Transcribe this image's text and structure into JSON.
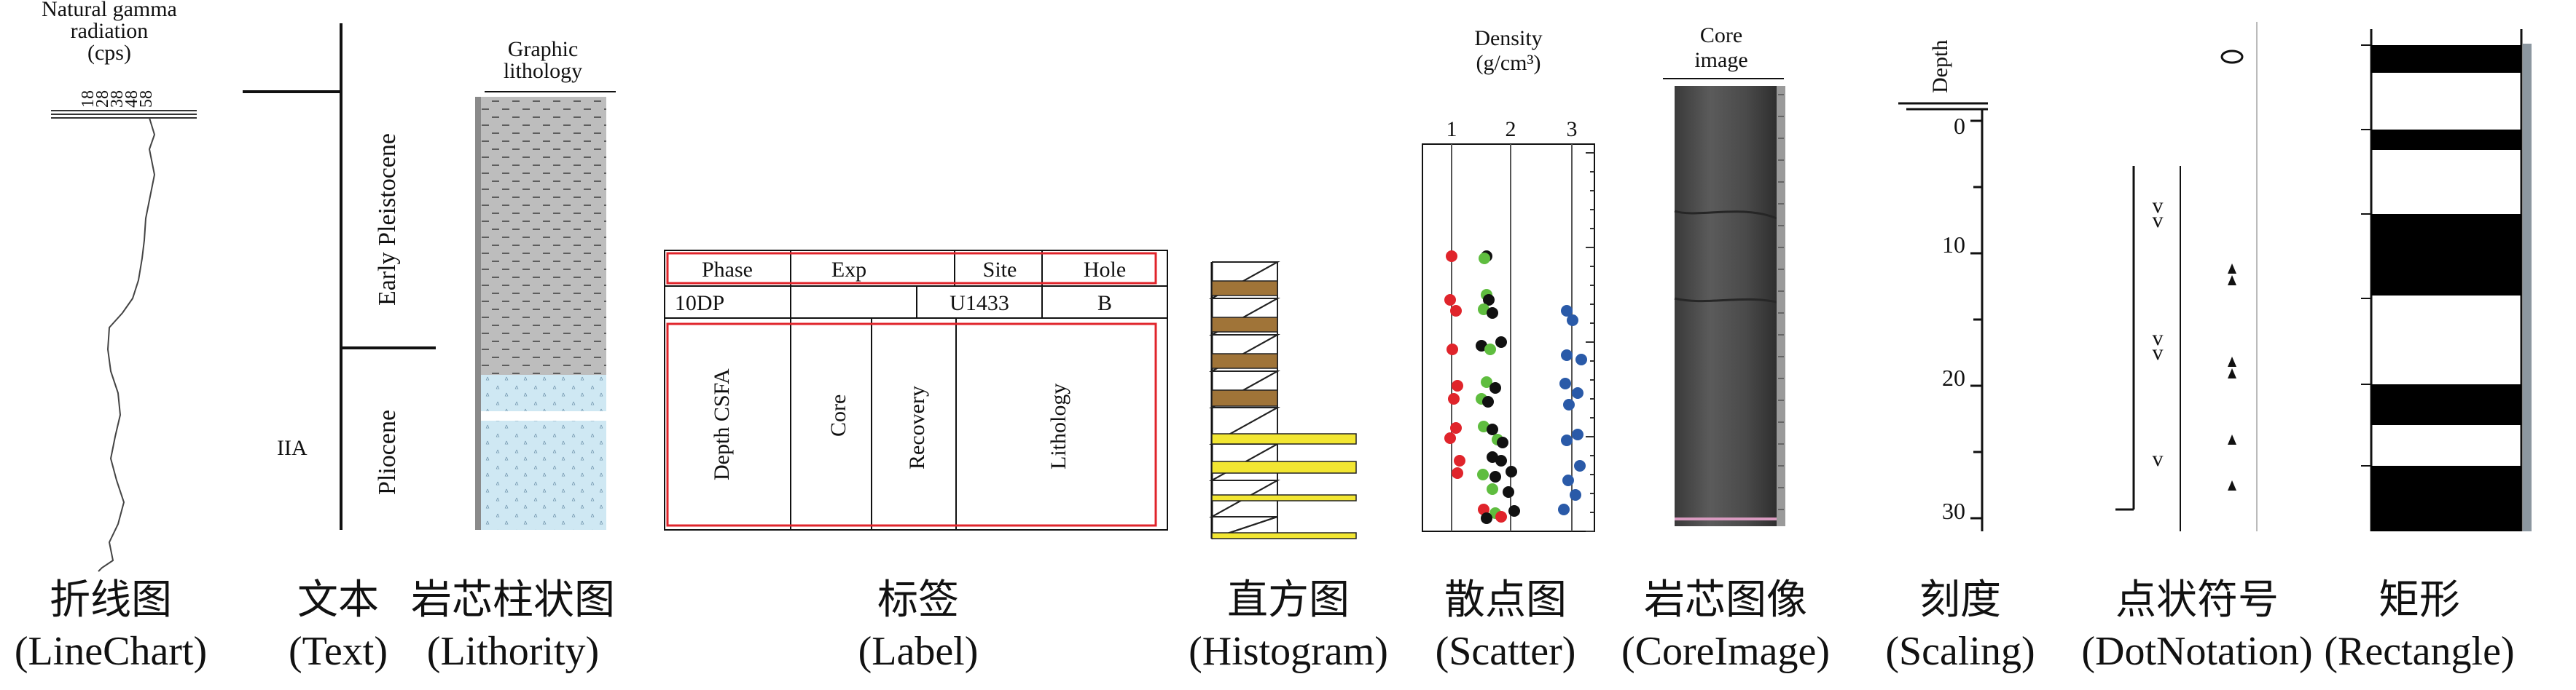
{
  "linechart": {
    "title": [
      "Natural gamma",
      "radiation",
      "(cps)"
    ],
    "ticks": [
      "18",
      "28",
      "38",
      "48",
      "58"
    ]
  },
  "text": {
    "upper": "Early Pleistocene",
    "lower": "Pliocene",
    "side": "IIA"
  },
  "lithology": {
    "title": [
      "Graphic",
      "lithology"
    ]
  },
  "label": {
    "headers": [
      "Phase",
      "Exp",
      "Site",
      "Hole"
    ],
    "values": [
      "10DP",
      "",
      "U1433",
      "B"
    ],
    "columns": [
      "Depth CSFA",
      "Core",
      "Recovery",
      "Lithology"
    ]
  },
  "histogram": {
    "colors": {
      "brown": "#a07438",
      "yellow": "#f2e632"
    }
  },
  "scatter": {
    "title": [
      "Density",
      "(g/cm³)"
    ],
    "ticks": [
      "1",
      "2",
      "3"
    ],
    "colors": {
      "red": "#e0242b",
      "green": "#5fbd3f",
      "black": "#111111",
      "blue": "#2a5aa8"
    }
  },
  "coreimage": {
    "title": [
      "Core",
      "image"
    ]
  },
  "scaling": {
    "title": "Depth",
    "ticks": [
      "0",
      "10",
      "20",
      "30"
    ]
  },
  "dotnotation": {
    "symbols": {
      "chevron": "v"
    }
  },
  "captions": [
    {
      "zh": "折线图",
      "en": "(LineChart)"
    },
    {
      "zh": "文本",
      "en": "(Text)"
    },
    {
      "zh": "岩芯柱状图",
      "en": "(Lithority)"
    },
    {
      "zh": "标签",
      "en": "(Label)"
    },
    {
      "zh": "直方图",
      "en": "(Histogram)"
    },
    {
      "zh": "散点图",
      "en": "(Scatter)"
    },
    {
      "zh": "岩芯图像",
      "en": "(CoreImage)"
    },
    {
      "zh": "刻度",
      "en": "(Scaling)"
    },
    {
      "zh": "点状符号",
      "en": "(DotNotation)"
    },
    {
      "zh": "矩形",
      "en": "(Rectangle)"
    }
  ]
}
